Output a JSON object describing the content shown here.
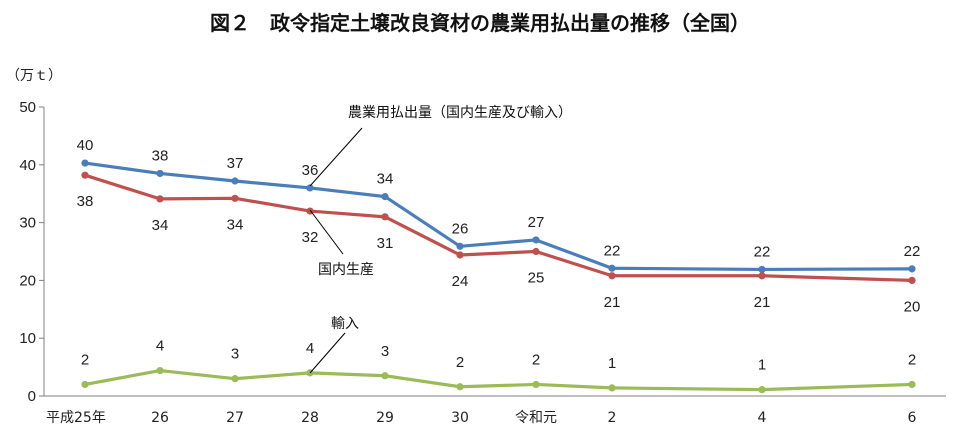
{
  "chart_data": {
    "type": "line",
    "title": "図２　政令指定土壌改良資材の農業用払出量の推移（全国）",
    "ylabel": "（万ｔ）",
    "ylim": [
      0,
      50
    ],
    "yticks": [
      "0",
      "10",
      "20",
      "30",
      "40",
      "50"
    ],
    "categories": [
      "平成25年",
      "26",
      "27",
      "28",
      "29",
      "30",
      "令和元",
      "2",
      "4",
      "6"
    ],
    "grid": false,
    "series": [
      {
        "name": "農業用払出量（国内生産及び輸入）",
        "color": "#4a7ebb",
        "values": [
          40,
          38,
          37,
          36,
          34,
          26,
          27,
          22,
          22,
          22
        ],
        "labels": [
          "40",
          "38",
          "37",
          "36",
          "34",
          "26",
          "27",
          "22",
          "22",
          "22"
        ],
        "plot_values": [
          40.3,
          38.5,
          37.2,
          36.0,
          34.5,
          25.9,
          27.0,
          22.1,
          21.9,
          22.0
        ]
      },
      {
        "name": "国内生産",
        "color": "#c0504d",
        "values": [
          38,
          34,
          34,
          32,
          31,
          24,
          25,
          21,
          21,
          20
        ],
        "labels": [
          "38",
          "34",
          "34",
          "32",
          "31",
          "24",
          "25",
          "21",
          "21",
          "20"
        ],
        "plot_values": [
          38.2,
          34.1,
          34.2,
          32.0,
          31.0,
          24.4,
          25.0,
          20.8,
          20.8,
          20.0
        ]
      },
      {
        "name": "輸入",
        "color": "#9bbb59",
        "values": [
          2,
          4,
          3,
          4,
          3,
          2,
          2,
          1,
          1,
          2
        ],
        "labels": [
          "2",
          "4",
          "3",
          "4",
          "3",
          "2",
          "2",
          "1",
          "1",
          "2"
        ],
        "plot_values": [
          2.0,
          4.4,
          3.0,
          4.0,
          3.5,
          1.6,
          2.0,
          1.4,
          1.1,
          2.0
        ]
      }
    ]
  }
}
